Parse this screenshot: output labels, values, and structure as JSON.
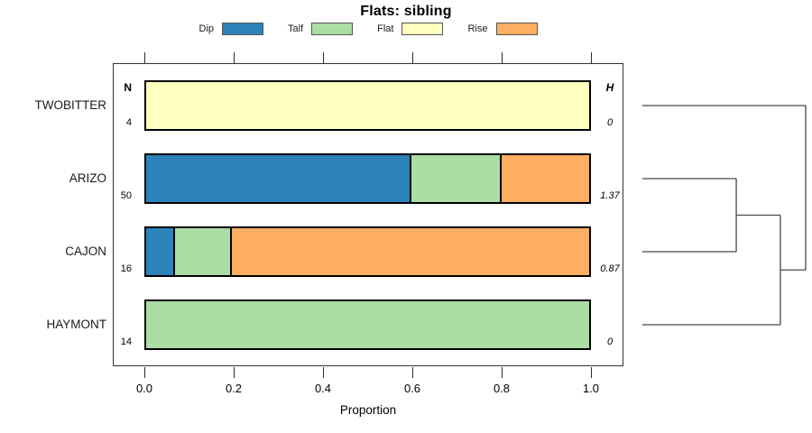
{
  "title": "Flats: sibling",
  "legend": [
    {
      "label": "Dip",
      "color": "#2B83BA"
    },
    {
      "label": "Talf",
      "color": "#ABDDA4"
    },
    {
      "label": "Flat",
      "color": "#FFFFBF"
    },
    {
      "label": "Rise",
      "color": "#FDAE61"
    }
  ],
  "chart_data": {
    "type": "bar",
    "orientation": "horizontal",
    "stacked": true,
    "title": "Flats: sibling",
    "xlabel": "Proportion",
    "xlim": [
      0,
      1
    ],
    "xticks": [
      0.0,
      0.2,
      0.4,
      0.6,
      0.8,
      1.0
    ],
    "xtick_labels": [
      "0.0",
      "0.2",
      "0.4",
      "0.6",
      "0.8",
      "1.0"
    ],
    "categories": [
      "Dip",
      "Talf",
      "Flat",
      "Rise"
    ],
    "colors": {
      "Dip": "#2B83BA",
      "Talf": "#ABDDA4",
      "Flat": "#FFFFBF",
      "Rise": "#FDAE61"
    },
    "column_headers": {
      "left": "N",
      "right": "H"
    },
    "rows": [
      {
        "label": "TWOBITTER",
        "N": 4,
        "H": "0",
        "segments": {
          "Dip": 0,
          "Talf": 0,
          "Flat": 1.0,
          "Rise": 0
        }
      },
      {
        "label": "ARIZO",
        "N": 50,
        "H": "1.37",
        "segments": {
          "Dip": 0.6,
          "Talf": 0.2,
          "Flat": 0,
          "Rise": 0.2
        }
      },
      {
        "label": "CAJON",
        "N": 16,
        "H": "0.87",
        "segments": {
          "Dip": 0.0625,
          "Talf": 0.125,
          "Flat": 0,
          "Rise": 0.8125
        }
      },
      {
        "label": "HAYMONT",
        "N": 14,
        "H": "0",
        "segments": {
          "Dip": 0,
          "Talf": 1.0,
          "Flat": 0,
          "Rise": 0
        }
      }
    ],
    "dendrogram": {
      "leaf_order": [
        "TWOBITTER",
        "ARIZO",
        "CAJON",
        "HAYMONT"
      ],
      "merges": [
        {
          "a": 1,
          "b": 2,
          "depth": 0.575
        },
        {
          "a": 4,
          "b": 3,
          "depth": 0.845
        },
        {
          "a": 0,
          "b": 5,
          "depth": 1.0
        }
      ]
    }
  }
}
